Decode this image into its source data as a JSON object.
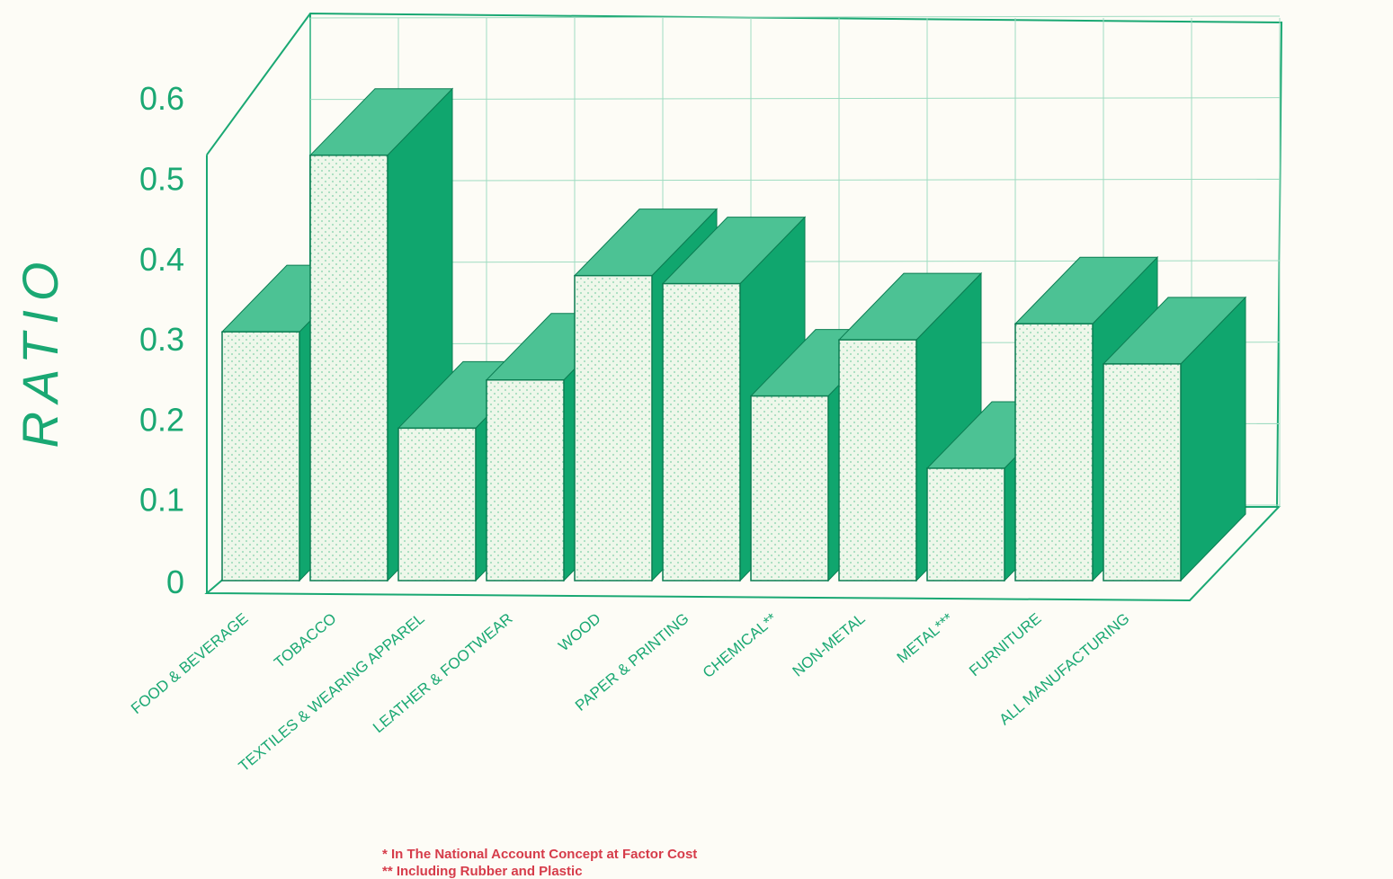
{
  "chart_data": {
    "type": "bar",
    "style": "3d",
    "ylabel": "RATIO",
    "xlabel": "",
    "ylim": [
      0,
      0.6
    ],
    "yticks": [
      "0",
      "0.1",
      "0.2",
      "0.3",
      "0.4",
      "0.5",
      "0.6"
    ],
    "categories": [
      "FOOD & BEVERAGE",
      "TOBACCO",
      "TEXTILES & WEARING APPAREL",
      "LEATHER & FOOTWEAR",
      "WOOD",
      "PAPER & PRINTING",
      "CHEMICAL**",
      "NON-METAL",
      "METAL***",
      "FURNITURE",
      "ALL MANUFACTURING"
    ],
    "values": [
      0.31,
      0.53,
      0.19,
      0.25,
      0.38,
      0.37,
      0.23,
      0.3,
      0.14,
      0.32,
      0.27
    ],
    "grid": true,
    "footnotes": [
      "* In The National Account Concept at Factor Cost",
      "** Including Rubber and Plastic"
    ],
    "colors": {
      "accent": "#1aa873",
      "bar_front": "#eef7ea",
      "bar_top": "#4cc294",
      "bar_side": "#10a66e",
      "grid": "#9fdcc1",
      "footnote": "#d63c4a"
    }
  }
}
